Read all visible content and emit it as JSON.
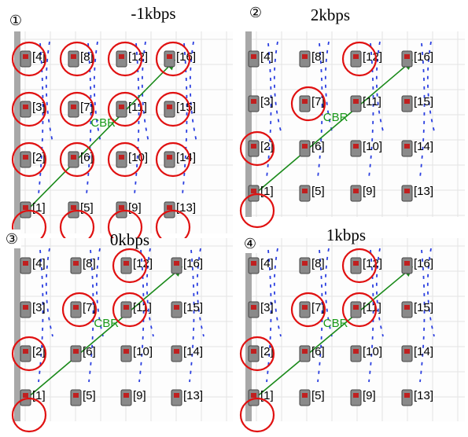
{
  "panels": [
    {
      "number": "①",
      "title": "-1kbps",
      "flow_label": "CBR",
      "nodes": [
        "[1]",
        "[2]",
        "[3]",
        "[4]",
        "[5]",
        "[6]",
        "[7]",
        "[8]",
        "[9]",
        "[10]",
        "[11]",
        "[12]",
        "[13]",
        "[14]",
        "[15]",
        "[16]"
      ]
    },
    {
      "number": "②",
      "title": "2kbps",
      "flow_label": "CBR",
      "nodes": [
        "[1]",
        "[2]",
        "[3]",
        "[4]",
        "[5]",
        "[6]",
        "[7]",
        "[8]",
        "[9]",
        "[10]",
        "[11]",
        "[12]",
        "[13]",
        "[14]",
        "[15]",
        "[16]"
      ]
    },
    {
      "number": "③",
      "title": "0kbps",
      "flow_label": "CBR",
      "nodes": [
        "[1]",
        "[2]",
        "[3]",
        "[4]",
        "[5]",
        "[6]",
        "[7]",
        "[8]",
        "[9]",
        "[10]",
        "[11]",
        "[12]",
        "[13]",
        "[14]",
        "[15]",
        "[16]"
      ]
    },
    {
      "number": "④",
      "title": "1kbps",
      "flow_label": "CBR",
      "nodes": [
        "[1]",
        "[2]",
        "[3]",
        "[4]",
        "[5]",
        "[6]",
        "[7]",
        "[8]",
        "[9]",
        "[10]",
        "[11]",
        "[12]",
        "[13]",
        "[14]",
        "[15]",
        "[16]"
      ]
    }
  ]
}
